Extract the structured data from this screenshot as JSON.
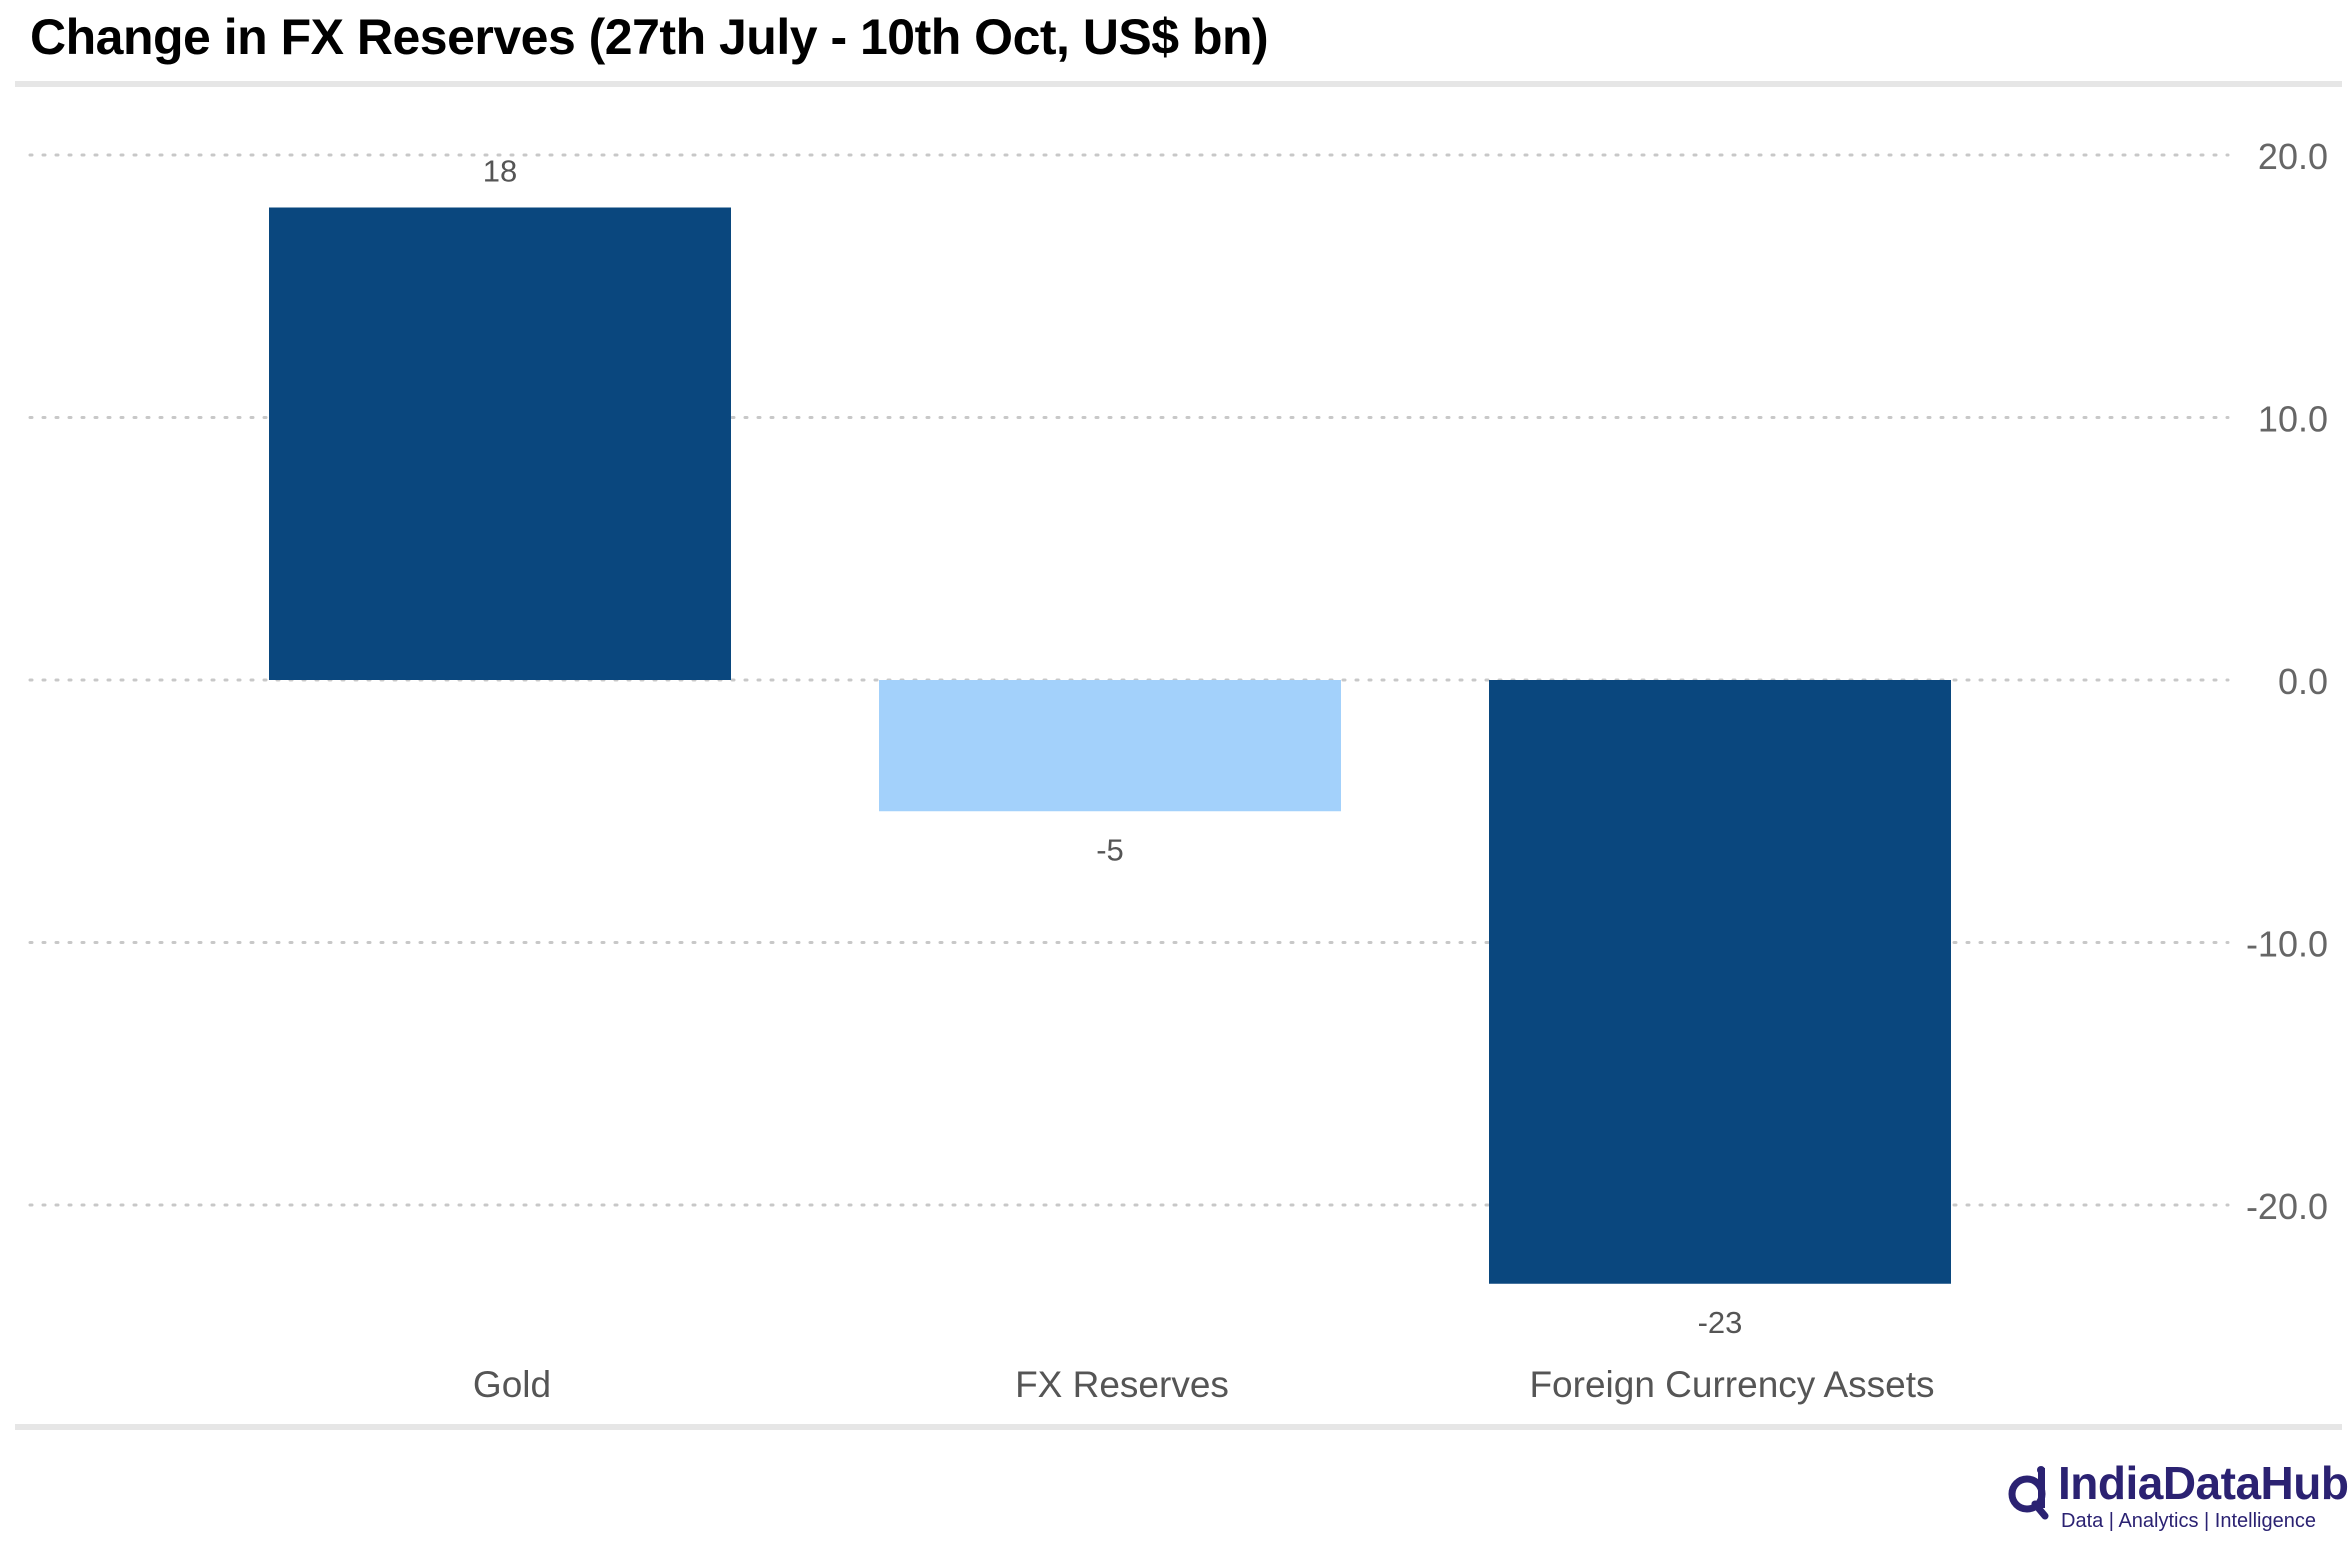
{
  "title": "Change in FX Reserves (27th July - 10th Oct, US$ bn)",
  "chart_data": {
    "type": "bar",
    "title": "Change in FX Reserves (27th July - 10th Oct, US$ bn)",
    "categories": [
      "Gold",
      "FX Reserves",
      "Foreign Currency Assets"
    ],
    "values": [
      18,
      -5,
      -23
    ],
    "data_labels": [
      "18",
      "-5",
      "-23"
    ],
    "bar_colors": [
      "#0a477e",
      "#a3d1fb",
      "#0a477e"
    ],
    "ylim": [
      -23,
      20
    ],
    "yticks": [
      20,
      10,
      0,
      -10,
      -20
    ],
    "ytick_labels": [
      "20.0",
      "10.0",
      "0.0",
      "-10.0",
      "-20.0"
    ],
    "y_axis_side": "right",
    "grid": true,
    "xlabel": "",
    "ylabel": ""
  },
  "branding": {
    "name": "IndiaDataHub",
    "tagline": "Data | Analytics | Intelligence",
    "color": "#2b2272"
  }
}
